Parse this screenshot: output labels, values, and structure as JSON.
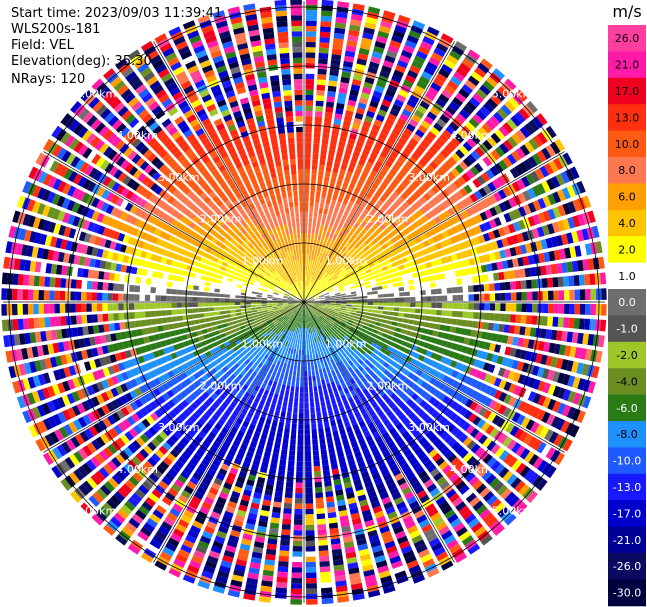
{
  "header": {
    "start_time": "Start time: 2023/09/03 11:39:41",
    "instrument": "WLS200s-181",
    "field": "Field: VEL",
    "elevation": "Elevation(deg): 35.30",
    "nrays": "NRays: 120"
  },
  "chart_data": {
    "type": "heatmap",
    "projection": "polar-ppi",
    "field": "VEL",
    "units": "m/s",
    "nrays": 120,
    "ring_labels": [
      "1.00km",
      "2.00km",
      "3.00km",
      "4.00km",
      "5.00km"
    ],
    "colorbar": {
      "title": "m/s",
      "ticks": [
        "26.0",
        "21.0",
        "17.0",
        "13.0",
        "10.0",
        "8.0",
        "6.0",
        "4.0",
        "2.0",
        "1.0",
        "0.0",
        "-1.0",
        "-2.0",
        "-4.0",
        "-6.0",
        "-8.0",
        "-10.0",
        "-13.0",
        "-17.0",
        "-21.0",
        "-26.0",
        "-30.0"
      ],
      "colors": [
        "#ff3fa0",
        "#ff1aa8",
        "#f0001e",
        "#ff3010",
        "#ff5a14",
        "#ff7850",
        "#ffa000",
        "#ffc400",
        "#ffff00",
        "#ffffff",
        "#6e6e6e",
        "#555555",
        "#9ec82a",
        "#6b8e23",
        "#2a7a16",
        "#1e90ff",
        "#1e5aff",
        "#1818ff",
        "#0000cc",
        "#000096",
        "#0a0a60",
        "#000040"
      ]
    },
    "description_values": {
      "near_range_north": "positive (orange/red, toward 10-17 m/s)",
      "near_range_south": "negative (blue, -8 to -13 m/s)",
      "near_range_east_west": "near 0 (gray/yellow/green)",
      "far_range": "noise (random values across full scale)"
    }
  }
}
